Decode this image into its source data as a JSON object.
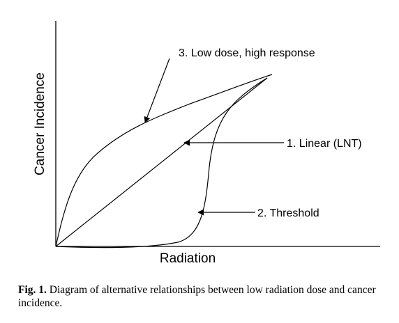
{
  "diagram": {
    "ylabel": "Cancer Incidence",
    "xlabel": "Radiation",
    "annotations": [
      {
        "id": "low-dose",
        "text": "3. Low dose, high response"
      },
      {
        "id": "linear",
        "text": "1. Linear (LNT)"
      },
      {
        "id": "threshold",
        "text": "2. Threshold"
      }
    ],
    "line_color": "#000000"
  },
  "caption": {
    "label": "Fig. 1.",
    "text": "Diagram of alternative relationships between low radiation dose and cancer incidence."
  }
}
